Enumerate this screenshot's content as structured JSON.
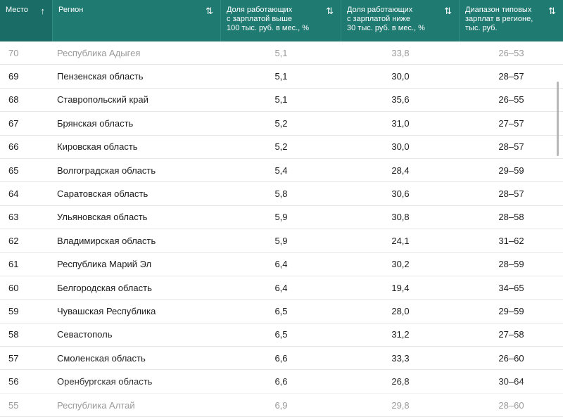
{
  "headers": {
    "rank": "Место",
    "rank_sort": "↑",
    "region": "Регион",
    "region_sort": "⇅",
    "high_share": [
      "Доля работающих",
      "с зарплатой выше",
      "100 тыс. руб. в мес., %"
    ],
    "high_share_sort": "⇅",
    "low_share": [
      "Доля работающих",
      "с зарплатой ниже",
      "30 тыс. руб. в мес., %"
    ],
    "low_share_sort": "⇅",
    "range": [
      "Диапазон типовых",
      "зарплат в регионе,",
      "тыс. руб."
    ],
    "range_sort": "⇅"
  },
  "rows": [
    {
      "rank": "70",
      "region": "Республика Адыгея",
      "high": "5,1",
      "low": "33,8",
      "range": "26–53"
    },
    {
      "rank": "69",
      "region": "Пензенская область",
      "high": "5,1",
      "low": "30,0",
      "range": "28–57"
    },
    {
      "rank": "68",
      "region": "Ставропольский край",
      "high": "5,1",
      "low": "35,6",
      "range": "26–55"
    },
    {
      "rank": "67",
      "region": "Брянская область",
      "high": "5,2",
      "low": "31,0",
      "range": "27–57"
    },
    {
      "rank": "66",
      "region": "Кировская область",
      "high": "5,2",
      "low": "30,0",
      "range": "28–57"
    },
    {
      "rank": "65",
      "region": "Волгоградская область",
      "high": "5,4",
      "low": "28,4",
      "range": "29–59"
    },
    {
      "rank": "64",
      "region": "Саратовская область",
      "high": "5,8",
      "low": "30,6",
      "range": "28–57"
    },
    {
      "rank": "63",
      "region": "Ульяновская область",
      "high": "5,9",
      "low": "30,8",
      "range": "28–58"
    },
    {
      "rank": "62",
      "region": "Владимирская область",
      "high": "5,9",
      "low": "24,1",
      "range": "31–62"
    },
    {
      "rank": "61",
      "region": "Республика Марий Эл",
      "high": "6,4",
      "low": "30,2",
      "range": "28–59"
    },
    {
      "rank": "60",
      "region": "Белгородская область",
      "high": "6,4",
      "low": "19,4",
      "range": "34–65"
    },
    {
      "rank": "59",
      "region": "Чувашская Республика",
      "high": "6,5",
      "low": "28,0",
      "range": "29–59"
    },
    {
      "rank": "58",
      "region": "Севастополь",
      "high": "6,5",
      "low": "31,2",
      "range": "27–58"
    },
    {
      "rank": "57",
      "region": "Смоленская область",
      "high": "6,6",
      "low": "33,3",
      "range": "26–60"
    },
    {
      "rank": "56",
      "region": "Оренбургская область",
      "high": "6,6",
      "low": "26,8",
      "range": "30–64"
    },
    {
      "rank": "55",
      "region": "Республика Алтай",
      "high": "6,9",
      "low": "29,8",
      "range": "28–60"
    }
  ]
}
